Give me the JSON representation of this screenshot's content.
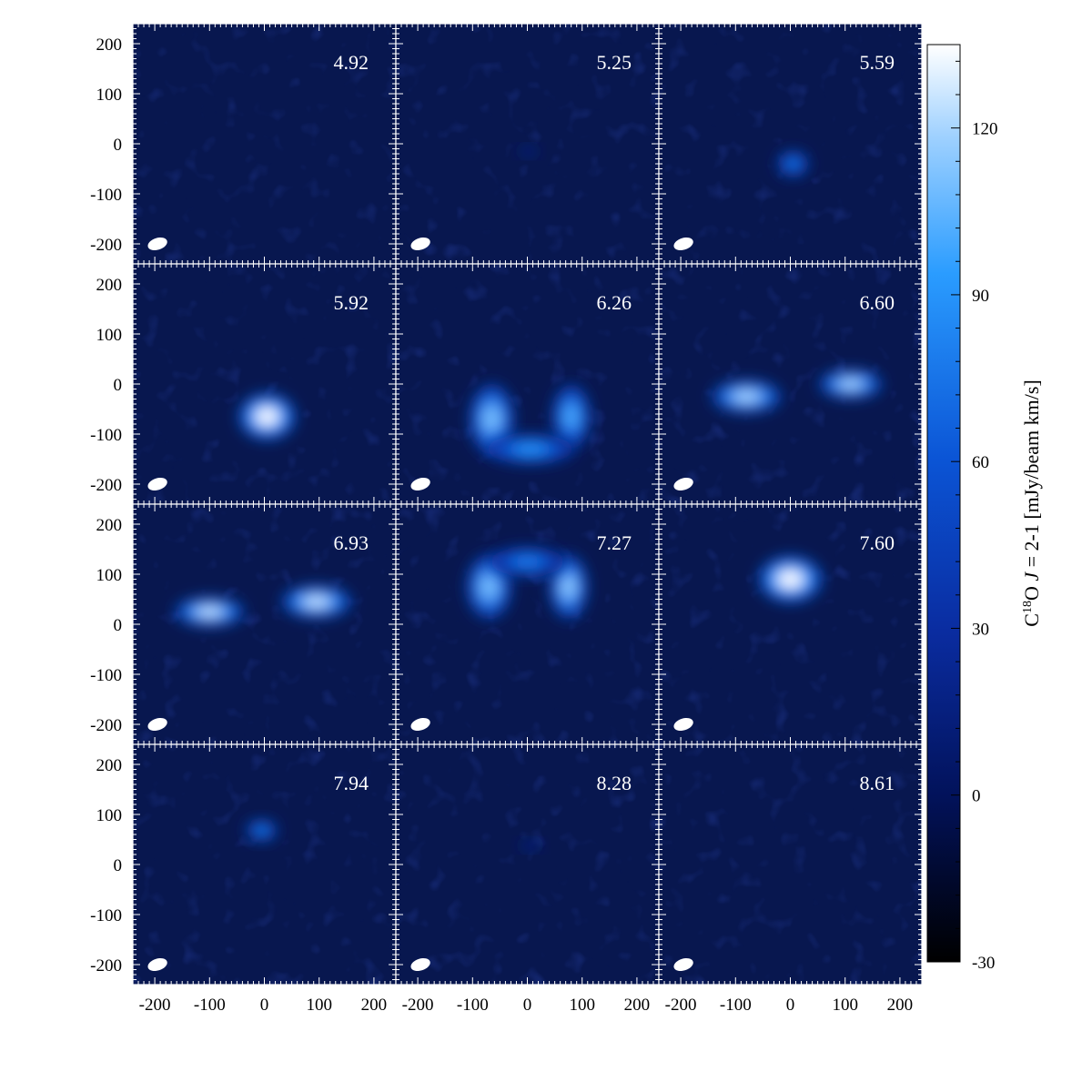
{
  "chart_data": {
    "type": "heatmap",
    "description_type": "channel-map grid",
    "rows": 4,
    "cols": 3,
    "xlim": [
      -240,
      240
    ],
    "ylim": [
      -240,
      240
    ],
    "x_ticks": [
      -200,
      -100,
      0,
      100,
      200
    ],
    "y_ticks": [
      200,
      100,
      0,
      -100,
      -200
    ],
    "x_tick_labels": [
      "-200",
      "-100",
      "0",
      "100",
      "200"
    ],
    "y_tick_labels": [
      "200",
      "100",
      "0",
      "-100",
      "-200"
    ],
    "channels": [
      {
        "velocity": "4.92",
        "blobs": []
      },
      {
        "velocity": "5.25",
        "blobs": [
          {
            "x": 2,
            "y": -15,
            "rx": 14,
            "ry": 8,
            "peak": 30
          }
        ]
      },
      {
        "velocity": "5.59",
        "blobs": [
          {
            "x": 5,
            "y": -40,
            "rx": 25,
            "ry": 22,
            "peak": 80
          }
        ]
      },
      {
        "velocity": "5.92",
        "blobs": [
          {
            "x": 5,
            "y": -65,
            "rx": 45,
            "ry": 40,
            "peak": 135
          }
        ]
      },
      {
        "velocity": "6.26",
        "blobs": [
          {
            "x": -65,
            "y": -70,
            "rx": 35,
            "ry": 60,
            "peak": 110
          },
          {
            "x": 80,
            "y": -65,
            "rx": 30,
            "ry": 55,
            "peak": 100
          },
          {
            "x": 5,
            "y": -130,
            "rx": 70,
            "ry": 25,
            "peak": 90
          }
        ]
      },
      {
        "velocity": "6.60",
        "blobs": [
          {
            "x": -80,
            "y": -25,
            "rx": 55,
            "ry": 28,
            "peak": 120
          },
          {
            "x": 110,
            "y": 0,
            "rx": 50,
            "ry": 25,
            "peak": 120
          }
        ]
      },
      {
        "velocity": "6.93",
        "blobs": [
          {
            "x": -100,
            "y": 25,
            "rx": 55,
            "ry": 25,
            "peak": 125
          },
          {
            "x": 95,
            "y": 45,
            "rx": 55,
            "ry": 28,
            "peak": 125
          }
        ]
      },
      {
        "velocity": "7.27",
        "blobs": [
          {
            "x": -70,
            "y": 75,
            "rx": 35,
            "ry": 55,
            "peak": 110
          },
          {
            "x": 75,
            "y": 75,
            "rx": 30,
            "ry": 55,
            "peak": 115
          },
          {
            "x": 0,
            "y": 125,
            "rx": 60,
            "ry": 25,
            "peak": 80
          }
        ]
      },
      {
        "velocity": "7.60",
        "blobs": [
          {
            "x": 0,
            "y": 90,
            "rx": 50,
            "ry": 40,
            "peak": 135
          }
        ]
      },
      {
        "velocity": "7.94",
        "blobs": [
          {
            "x": -5,
            "y": 68,
            "rx": 25,
            "ry": 18,
            "peak": 85
          }
        ]
      },
      {
        "velocity": "8.28",
        "blobs": [
          {
            "x": 5,
            "y": 38,
            "rx": 16,
            "ry": 8,
            "peak": 30
          }
        ]
      },
      {
        "velocity": "8.61",
        "blobs": []
      }
    ],
    "colorbar": {
      "min": -30,
      "max": 135,
      "ticks": [
        120,
        90,
        60,
        30,
        0,
        -30
      ],
      "tick_labels": [
        "120",
        "90",
        "60",
        "30",
        "0",
        "-30"
      ],
      "colors": {
        "low": "#000000",
        "mid_dark": "#02125a",
        "mid": "#0b55d6",
        "high": "#2a9cff",
        "top": "#ffffff"
      }
    },
    "colorbar_label": {
      "prefix": "C",
      "superscript": "18",
      "middle": "O ",
      "italic": "J",
      "suffix": " = 2-1 [mJy/beam km/s]"
    },
    "background_color": "#08174f"
  }
}
